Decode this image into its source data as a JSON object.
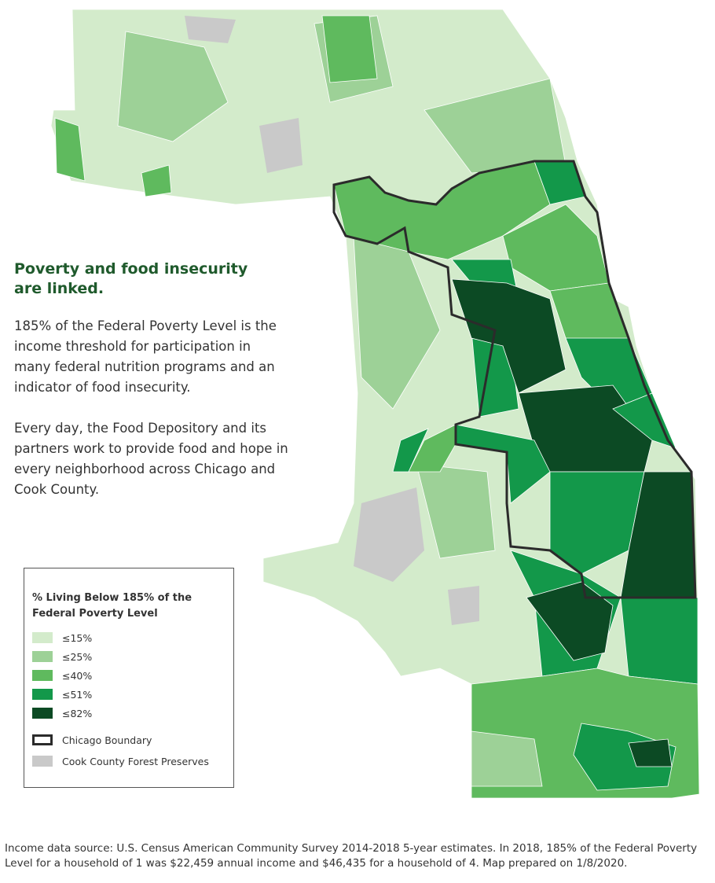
{
  "heading": "Poverty and food insecurity are linked.",
  "paragraphs": [
    "185% of the Federal Poverty Level is the income threshold for participation in many federal nutrition programs and an indicator of food insecurity.",
    "Every day, the Food Depository and its partners work to provide food and hope in every neighborhood across Chicago and Cook County."
  ],
  "legend": {
    "title": "% Living Below 185% of the Federal Poverty Level",
    "items": [
      {
        "label": "≤15%",
        "color": "#d3ebcb"
      },
      {
        "label": "≤25%",
        "color": "#9dd197"
      },
      {
        "label": "≤40%",
        "color": "#5fba5e"
      },
      {
        "label": "≤51%",
        "color": "#13984a"
      },
      {
        "label": "≤82%",
        "color": "#0c4a24"
      }
    ],
    "boundary": "Chicago Boundary",
    "forest": "Cook County Forest Preserves"
  },
  "footnote": "Income data source: U.S. Census American Community Survey 2014-2018 5-year estimates. In 2018, 185% of the Federal Poverty Level for a household of 1 was $22,459 annual income and $46,435 for a household of 4. Map prepared on 1/8/2020."
}
